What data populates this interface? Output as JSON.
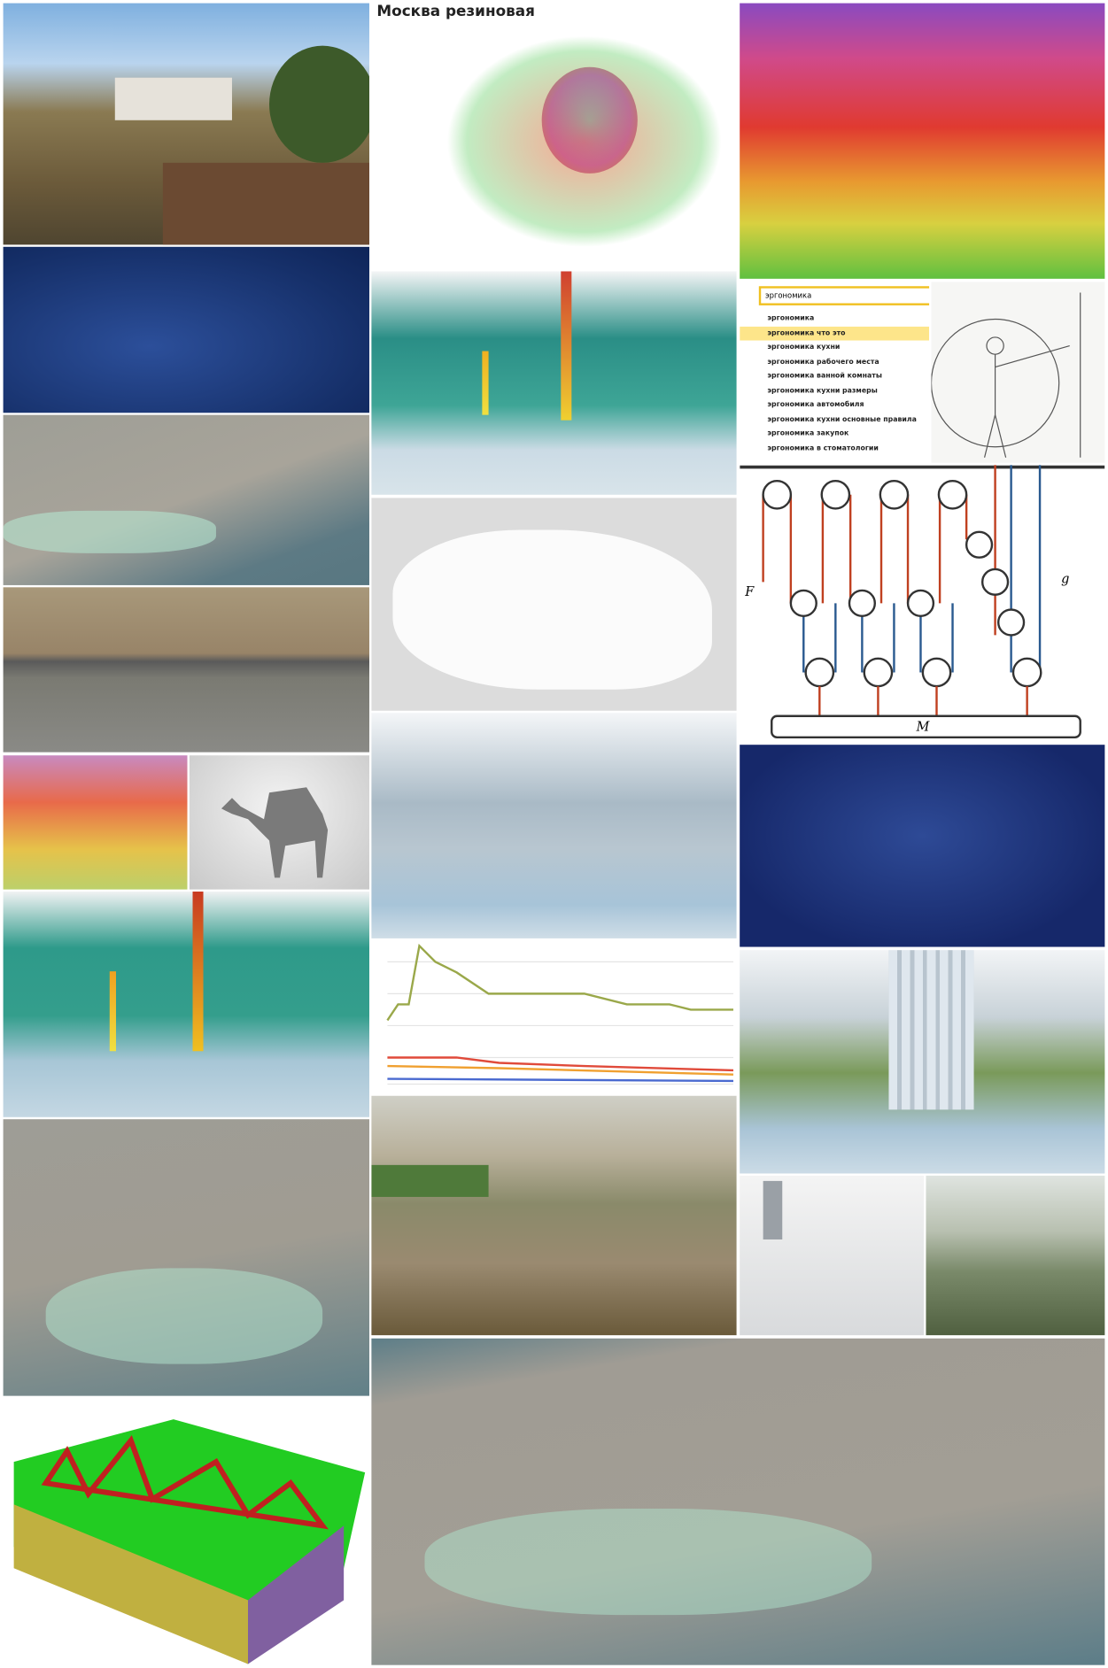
{
  "moscow": {
    "title": "Москва резиновая"
  },
  "search": {
    "query": "эргономика",
    "suggestions": [
      "эргономика",
      "эргономика что это",
      "эргономика кухни",
      "эргономика рабочего места",
      "эргономика ванной комнаты",
      "эргономика кухни размеры",
      "эргономика автомобиля",
      "эргономика кухни основные правила",
      "эргономика закупок",
      "эргономика в стоматологии"
    ]
  },
  "pulley": {
    "force": "F",
    "gravity": "g",
    "mass": "M"
  }
}
